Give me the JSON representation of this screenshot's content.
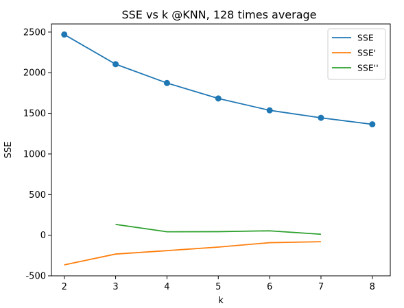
{
  "chart_data": {
    "type": "line",
    "title": "SSE vs k @KNN, 128 times average",
    "xlabel": "k",
    "ylabel": "SSE",
    "xlim": [
      1.75,
      8.35
    ],
    "ylim": [
      -500,
      2600
    ],
    "xticks": [
      2,
      3,
      4,
      5,
      6,
      7,
      8
    ],
    "yticks": [
      -500,
      0,
      500,
      1000,
      1500,
      2000,
      2500
    ],
    "grid": false,
    "legend_position": "top-right",
    "series": [
      {
        "name": "SSE",
        "color": "#1f77b4",
        "markers": true,
        "x": [
          2,
          3,
          4,
          5,
          6,
          7,
          8
        ],
        "values": [
          2470,
          2105,
          1873,
          1683,
          1537,
          1445,
          1365
        ]
      },
      {
        "name": "SSE'",
        "color": "#ff7f0e",
        "markers": false,
        "x": [
          2,
          3,
          4,
          5,
          6,
          7
        ],
        "values": [
          -365,
          -232,
          -190,
          -146,
          -92,
          -80
        ]
      },
      {
        "name": "SSE''",
        "color": "#2ca02c",
        "markers": false,
        "x": [
          3,
          4,
          5,
          6,
          7
        ],
        "values": [
          133,
          42,
          44,
          54,
          12
        ]
      }
    ]
  }
}
